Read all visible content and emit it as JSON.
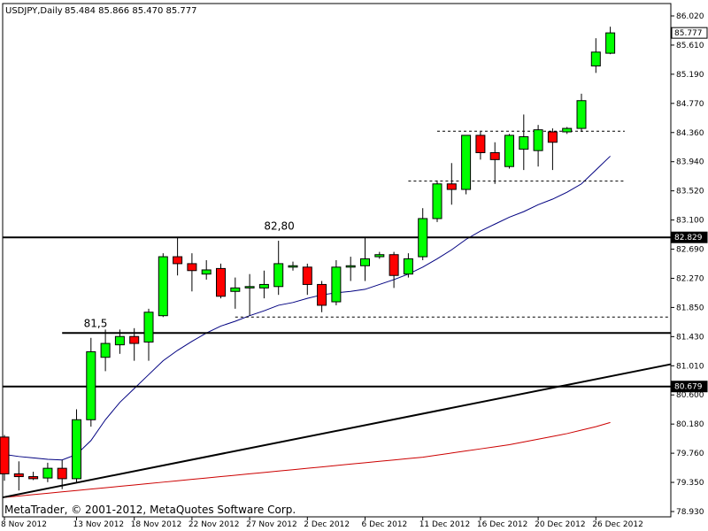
{
  "header": {
    "symbol": "USDJPY,Daily",
    "ohlc": "85.484 85.866 85.470 85.777"
  },
  "copyright": "MetaTrader, © 2001-2012, MetaQuotes Software Corp.",
  "colors": {
    "bull": "#00ff00",
    "bear": "#ff0000",
    "ma_fast": "#000080",
    "ma_slow": "#cc0000",
    "line": "#000000",
    "tag_bg": "#000000",
    "tag_text": "#ffffff",
    "grid": "#000000"
  },
  "chart_data": {
    "type": "candlestick",
    "title": "USDJPY,Daily",
    "ylim": [
      78.8,
      86.2
    ],
    "y_ticks": [
      "86.020",
      "85.610",
      "85.190",
      "84.770",
      "84.360",
      "83.940",
      "83.520",
      "83.100",
      "82.690",
      "82.270",
      "81.850",
      "81.430",
      "81.010",
      "80.600",
      "80.180",
      "79.760",
      "79.350",
      "78.930"
    ],
    "x_ticks": [
      {
        "label": "8 Nov 2012",
        "index": 0
      },
      {
        "label": "13 Nov 2012",
        "index": 5
      },
      {
        "label": "18 Nov 2012",
        "index": 9
      },
      {
        "label": "22 Nov 2012",
        "index": 13
      },
      {
        "label": "27 Nov 2012",
        "index": 17
      },
      {
        "label": "2 Dec 2012",
        "index": 21
      },
      {
        "label": "6 Dec 2012",
        "index": 25
      },
      {
        "label": "11 Dec 2012",
        "index": 29
      },
      {
        "label": "16 Dec 2012",
        "index": 33
      },
      {
        "label": "20 Dec 2012",
        "index": 37
      },
      {
        "label": "26 Dec 2012",
        "index": 41
      }
    ],
    "candles": [
      {
        "o": 79.95,
        "h": 79.98,
        "l": 79.32,
        "c": 79.42
      },
      {
        "o": 79.42,
        "h": 79.6,
        "l": 79.18,
        "c": 79.38
      },
      {
        "o": 79.38,
        "h": 79.45,
        "l": 79.33,
        "c": 79.35
      },
      {
        "o": 79.36,
        "h": 79.58,
        "l": 79.3,
        "c": 79.5
      },
      {
        "o": 79.5,
        "h": 79.62,
        "l": 79.2,
        "c": 79.35
      },
      {
        "o": 79.35,
        "h": 80.35,
        "l": 79.3,
        "c": 80.2
      },
      {
        "o": 80.2,
        "h": 81.38,
        "l": 80.1,
        "c": 81.18
      },
      {
        "o": 81.1,
        "h": 81.5,
        "l": 80.9,
        "c": 81.3
      },
      {
        "o": 81.28,
        "h": 81.5,
        "l": 81.15,
        "c": 81.4
      },
      {
        "o": 81.4,
        "h": 81.52,
        "l": 81.05,
        "c": 81.3
      },
      {
        "o": 81.32,
        "h": 81.8,
        "l": 81.05,
        "c": 81.75
      },
      {
        "o": 81.7,
        "h": 82.6,
        "l": 81.68,
        "c": 82.55
      },
      {
        "o": 82.55,
        "h": 82.82,
        "l": 82.28,
        "c": 82.45
      },
      {
        "o": 82.45,
        "h": 82.6,
        "l": 82.05,
        "c": 82.35
      },
      {
        "o": 82.3,
        "h": 82.5,
        "l": 82.22,
        "c": 82.36
      },
      {
        "o": 82.38,
        "h": 82.45,
        "l": 81.95,
        "c": 81.98
      },
      {
        "o": 82.05,
        "h": 82.25,
        "l": 81.8,
        "c": 82.1
      },
      {
        "o": 82.1,
        "h": 82.3,
        "l": 81.7,
        "c": 82.12
      },
      {
        "o": 82.1,
        "h": 82.35,
        "l": 81.95,
        "c": 82.15
      },
      {
        "o": 82.12,
        "h": 82.78,
        "l": 82.0,
        "c": 82.45
      },
      {
        "o": 82.4,
        "h": 82.48,
        "l": 82.35,
        "c": 82.42
      },
      {
        "o": 82.4,
        "h": 82.45,
        "l": 82.0,
        "c": 82.15
      },
      {
        "o": 82.15,
        "h": 82.2,
        "l": 81.75,
        "c": 81.85
      },
      {
        "o": 81.9,
        "h": 82.5,
        "l": 81.85,
        "c": 82.4
      },
      {
        "o": 82.4,
        "h": 82.55,
        "l": 82.2,
        "c": 82.42
      },
      {
        "o": 82.42,
        "h": 82.82,
        "l": 82.2,
        "c": 82.52
      },
      {
        "o": 82.55,
        "h": 82.62,
        "l": 82.52,
        "c": 82.58
      },
      {
        "o": 82.58,
        "h": 82.62,
        "l": 82.1,
        "c": 82.28
      },
      {
        "o": 82.3,
        "h": 82.6,
        "l": 82.25,
        "c": 82.52
      },
      {
        "o": 82.55,
        "h": 83.25,
        "l": 82.5,
        "c": 83.1
      },
      {
        "o": 83.1,
        "h": 83.65,
        "l": 83.05,
        "c": 83.6
      },
      {
        "o": 83.6,
        "h": 83.9,
        "l": 83.3,
        "c": 83.52
      },
      {
        "o": 83.52,
        "h": 84.3,
        "l": 83.45,
        "c": 84.3
      },
      {
        "o": 84.3,
        "h": 84.35,
        "l": 83.95,
        "c": 84.05
      },
      {
        "o": 84.05,
        "h": 84.2,
        "l": 83.6,
        "c": 83.95
      },
      {
        "o": 83.85,
        "h": 84.32,
        "l": 83.82,
        "c": 84.3
      },
      {
        "o": 84.1,
        "h": 84.6,
        "l": 83.8,
        "c": 84.28
      },
      {
        "o": 84.08,
        "h": 84.45,
        "l": 83.85,
        "c": 84.38
      },
      {
        "o": 84.35,
        "h": 84.4,
        "l": 83.8,
        "c": 84.2
      },
      {
        "o": 84.35,
        "h": 84.42,
        "l": 84.32,
        "c": 84.4
      },
      {
        "o": 84.4,
        "h": 84.9,
        "l": 84.35,
        "c": 84.8
      },
      {
        "o": 85.3,
        "h": 85.7,
        "l": 85.2,
        "c": 85.5
      },
      {
        "o": 85.484,
        "h": 85.866,
        "l": 85.47,
        "c": 85.777
      }
    ],
    "ma_fast": [
      79.7,
      79.67,
      79.65,
      79.63,
      79.62,
      79.7,
      79.9,
      80.2,
      80.45,
      80.65,
      80.85,
      81.05,
      81.2,
      81.33,
      81.45,
      81.55,
      81.62,
      81.7,
      81.77,
      81.85,
      81.89,
      81.95,
      82.0,
      82.03,
      82.05,
      82.08,
      82.15,
      82.22,
      82.3,
      82.4,
      82.52,
      82.65,
      82.8,
      82.92,
      83.02,
      83.12,
      83.2,
      83.3,
      83.38,
      83.48,
      83.6,
      83.8,
      84.0
    ],
    "ma_slow": [
      79.08,
      79.1,
      79.12,
      79.14,
      79.16,
      79.18,
      79.2,
      79.22,
      79.24,
      79.26,
      79.28,
      79.3,
      79.32,
      79.34,
      79.36,
      79.38,
      79.4,
      79.42,
      79.44,
      79.46,
      79.48,
      79.5,
      79.52,
      79.54,
      79.56,
      79.58,
      79.6,
      79.62,
      79.64,
      79.66,
      79.69,
      79.72,
      79.75,
      79.78,
      79.81,
      79.84,
      79.88,
      79.92,
      79.96,
      80.0,
      80.05,
      80.1,
      80.16
    ],
    "hlines": [
      {
        "y": 82.829,
        "tag": "82.829",
        "from_index": -1,
        "style": "solid"
      },
      {
        "y": 80.679,
        "tag": "80.679",
        "from_index": -1,
        "style": "solid"
      },
      {
        "y": 81.45,
        "from_index": 4,
        "style": "solid"
      }
    ],
    "dashed_lines": [
      {
        "y": 84.36,
        "from_index": 30,
        "to_index": 43
      },
      {
        "y": 83.64,
        "from_index": 28,
        "to_index": 43
      },
      {
        "y": 81.68,
        "from_index": 16,
        "to_index": 47
      }
    ],
    "trendline": {
      "index_from": -0.2,
      "y_from": 79.08,
      "index_to": 48,
      "y_to": 81.0
    },
    "annotations": [
      {
        "text": "82,80",
        "index": 18,
        "y": 82.9
      },
      {
        "text": "81,5",
        "index": 5.5,
        "y": 81.5
      }
    ],
    "price_tag_current": {
      "y": 85.777,
      "tag": "85.777"
    }
  }
}
